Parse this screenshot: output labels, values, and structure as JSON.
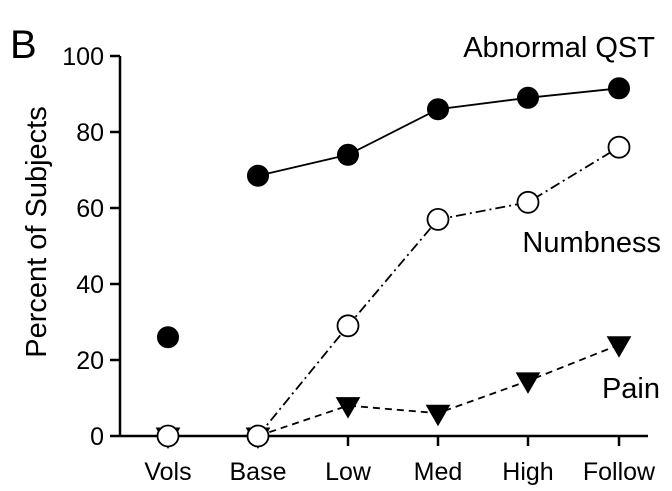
{
  "chart_data": {
    "type": "line",
    "panel_label": "B",
    "title": "",
    "xlabel": "",
    "ylabel": "Percent of Subjects",
    "categories": [
      "Vols",
      "Base",
      "Low",
      "Med",
      "High",
      "Follow"
    ],
    "ylim": [
      0,
      100
    ],
    "yticks": [
      "0",
      "20",
      "40",
      "60",
      "80",
      "100"
    ],
    "grid": false,
    "series": [
      {
        "name": "Abnormal QST",
        "marker": "filled-circle",
        "line": "solid",
        "connected_from": 1,
        "values": [
          26,
          68.5,
          74,
          86,
          89,
          91.5
        ]
      },
      {
        "name": "Numbness",
        "marker": "open-circle",
        "line": "dash-dot",
        "connected_from": 1,
        "values": [
          0,
          0,
          29,
          57,
          61.5,
          76
        ]
      },
      {
        "name": "Pain",
        "marker": "filled-triangle-down",
        "line": "dashed",
        "connected_from": 1,
        "values": [
          0,
          0,
          8,
          6,
          14.5,
          24
        ]
      }
    ],
    "colors": {
      "ink": "#000000",
      "background": "#ffffff"
    }
  }
}
